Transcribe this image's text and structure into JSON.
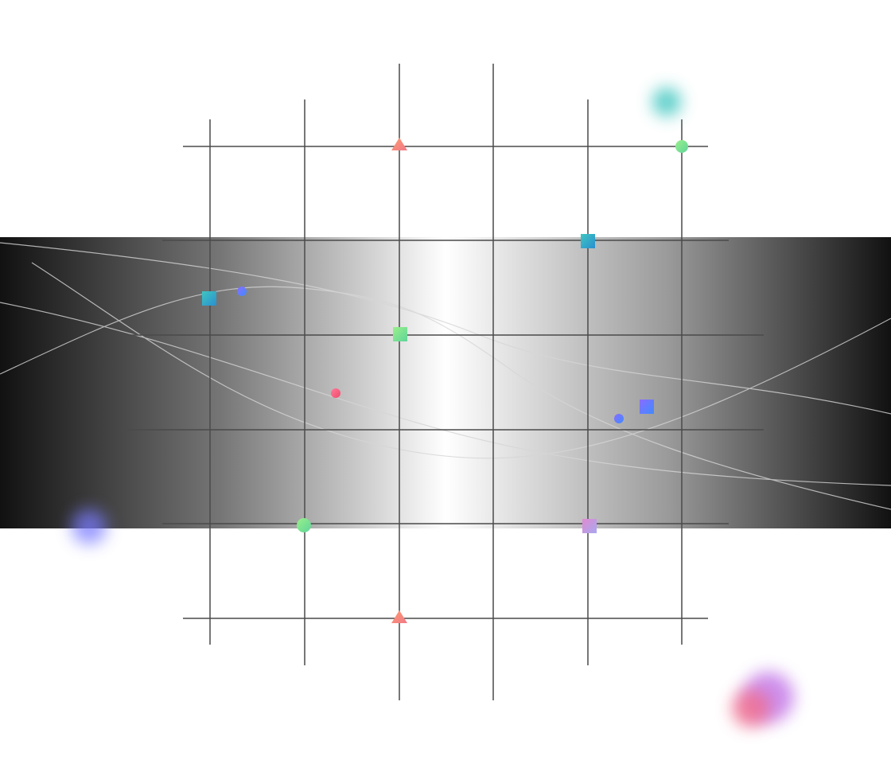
{
  "colors": {
    "background": "#ffffff",
    "band_edge": "#111111",
    "band_center": "#ffffff",
    "grid_line": "#4a4a4a",
    "curve_line": "#c8c8c8",
    "coral": "#f08a7a",
    "teal": "#2ab3b8",
    "mint": "#7ee08a",
    "blue": "#6b7cff",
    "lilac": "#c9a3e8",
    "pink": "#f06a8a",
    "violet": "#c47ae8"
  },
  "markers": [
    {
      "shape": "triangle",
      "color": "coral"
    },
    {
      "shape": "circle",
      "color": "mint"
    },
    {
      "shape": "square",
      "color": "teal"
    },
    {
      "shape": "square",
      "color": "teal"
    },
    {
      "shape": "circle",
      "color": "blue"
    },
    {
      "shape": "square",
      "color": "mint"
    },
    {
      "shape": "circle",
      "color": "pink"
    },
    {
      "shape": "circle",
      "color": "blue"
    },
    {
      "shape": "square",
      "color": "blue"
    },
    {
      "shape": "circle",
      "color": "mint"
    },
    {
      "shape": "square",
      "color": "lilac"
    },
    {
      "shape": "triangle",
      "color": "coral"
    }
  ],
  "blobs": [
    {
      "color": "teal"
    },
    {
      "color": "blue"
    },
    {
      "color": "violet"
    },
    {
      "color": "pink"
    }
  ]
}
